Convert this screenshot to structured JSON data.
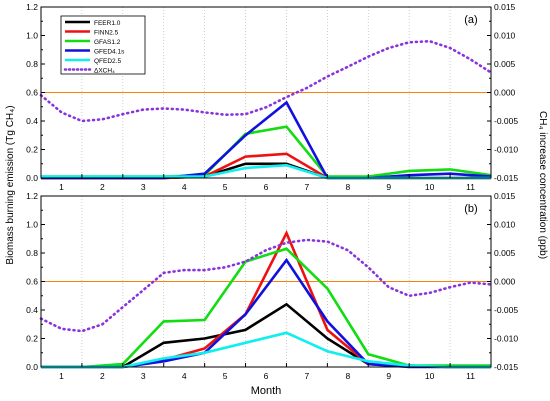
{
  "chart_data": {
    "type": "line",
    "xlabel": "Month",
    "ylabel_left": "Biomass burning emission (Tg CH₄)",
    "ylabel_right": "CH₄ increase concentration (ppb)",
    "x_ticks": [
      "1",
      "2",
      "3",
      "4",
      "5",
      "6",
      "7",
      "8",
      "9",
      "10",
      "11"
    ],
    "y_left_ticks": [
      "0.0",
      "0.2",
      "0.4",
      "0.6",
      "0.8",
      "1.0",
      "1.2"
    ],
    "y_right_ticks": [
      "-0.015",
      "-0.010",
      "-0.005",
      "0.000",
      "0.005",
      "0.010",
      "0.015"
    ],
    "y_left_range": [
      0,
      1.2
    ],
    "y_right_range": [
      -0.015,
      0.015
    ],
    "x_range": [
      0.5,
      11.5
    ],
    "colors": {
      "FEER1.0": "#000000",
      "FINN2.5": "#ee1111",
      "GFAS1.2": "#11dd11",
      "GFED4.1s": "#1111dd",
      "QFED2.5": "#11eeee",
      "dxch4": "#8833dd",
      "zero_line": "#ff7f0e"
    },
    "panels": [
      {
        "label": "(a)",
        "series": [
          {
            "name": "FEER1.0",
            "x": [
              0.5,
              1.5,
              2.5,
              3.5,
              4.5,
              5.5,
              6.5,
              7.5,
              8.5,
              9.5,
              10.5,
              11.5
            ],
            "y": [
              0,
              0,
              0,
              0,
              0.01,
              0.1,
              0.1,
              0,
              0,
              0,
              0,
              0
            ]
          },
          {
            "name": "FINN2.5",
            "x": [
              0.5,
              1.5,
              2.5,
              3.5,
              4.5,
              5.5,
              6.5,
              7.5,
              8.5,
              9.5,
              10.5,
              11.5
            ],
            "y": [
              0,
              0,
              0,
              0,
              0.01,
              0.15,
              0.17,
              0,
              0,
              0,
              0,
              0
            ]
          },
          {
            "name": "GFAS1.2",
            "x": [
              0.5,
              1.5,
              2.5,
              3.5,
              4.5,
              5.5,
              6.5,
              7.5,
              8.5,
              9.5,
              10.5,
              11.5
            ],
            "y": [
              0.01,
              0.01,
              0.01,
              0.01,
              0.02,
              0.31,
              0.36,
              0.01,
              0.01,
              0.05,
              0.06,
              0.02
            ]
          },
          {
            "name": "GFED4.1s",
            "x": [
              0.5,
              1.5,
              2.5,
              3.5,
              4.5,
              5.5,
              6.5,
              7.5,
              8.5,
              9.5,
              10.5,
              11.5
            ],
            "y": [
              0,
              0,
              0,
              0,
              0.03,
              0.3,
              0.53,
              0,
              0,
              0.02,
              0.03,
              0.01
            ]
          },
          {
            "name": "QFED2.5",
            "x": [
              0.5,
              1.5,
              2.5,
              3.5,
              4.5,
              5.5,
              6.5,
              7.5,
              8.5,
              9.5,
              10.5,
              11.5
            ],
            "y": [
              0.01,
              0.01,
              0.01,
              0.01,
              0.01,
              0.07,
              0.09,
              0,
              0,
              0,
              0,
              0
            ]
          }
        ],
        "dxch4": {
          "name": "ΔXCH₄",
          "x": [
            0.5,
            1,
            1.5,
            2,
            2.5,
            3,
            3.5,
            4,
            4.5,
            5,
            5.5,
            6,
            6.5,
            7,
            7.5,
            8,
            8.5,
            9,
            9.5,
            10,
            10.5,
            11,
            11.5
          ],
          "y": [
            -0.0005,
            -0.0035,
            -0.005,
            -0.0047,
            -0.0038,
            -0.003,
            -0.0028,
            -0.003,
            -0.0035,
            -0.0039,
            -0.0038,
            -0.0026,
            -0.0008,
            0.0008,
            0.0028,
            0.0045,
            0.0063,
            0.0078,
            0.0088,
            0.009,
            0.0078,
            0.0058,
            0.0035
          ]
        }
      },
      {
        "label": "(b)",
        "series": [
          {
            "name": "FEER1.0",
            "x": [
              0.5,
              1.5,
              2.5,
              3.5,
              4.5,
              5.5,
              6.5,
              7.5,
              8.5,
              9.5,
              10.5,
              11.5
            ],
            "y": [
              0,
              0,
              0,
              0.17,
              0.2,
              0.26,
              0.44,
              0.2,
              0.02,
              0.01,
              0,
              0
            ]
          },
          {
            "name": "FINN2.5",
            "x": [
              0.5,
              1.5,
              2.5,
              3.5,
              4.5,
              5.5,
              6.5,
              7.5,
              8.5,
              9.5,
              10.5,
              11.5
            ],
            "y": [
              0,
              0,
              0,
              0.05,
              0.13,
              0.37,
              0.94,
              0.26,
              0.02,
              0.01,
              0,
              0
            ]
          },
          {
            "name": "GFAS1.2",
            "x": [
              0.5,
              1.5,
              2.5,
              3.5,
              4.5,
              5.5,
              6.5,
              7.5,
              8.5,
              9.5,
              10.5,
              11.5
            ],
            "y": [
              0,
              0,
              0.02,
              0.32,
              0.33,
              0.74,
              0.83,
              0.55,
              0.09,
              0.01,
              0.01,
              0.01
            ]
          },
          {
            "name": "GFED4.1s",
            "x": [
              0.5,
              1.5,
              2.5,
              3.5,
              4.5,
              5.5,
              6.5,
              7.5,
              8.5,
              9.5,
              10.5,
              11.5
            ],
            "y": [
              0,
              0,
              0,
              0.04,
              0.1,
              0.37,
              0.75,
              0.32,
              0.02,
              0,
              0,
              0
            ]
          },
          {
            "name": "QFED2.5",
            "x": [
              0.5,
              1.5,
              2.5,
              3.5,
              4.5,
              5.5,
              6.5,
              7.5,
              8.5,
              9.5,
              10.5,
              11.5
            ],
            "y": [
              0,
              0,
              0,
              0.06,
              0.1,
              0.17,
              0.24,
              0.11,
              0.04,
              0.01,
              0,
              0
            ]
          }
        ],
        "dxch4": {
          "name": "ΔXCH₄",
          "x": [
            0.5,
            1,
            1.5,
            2,
            2.5,
            3,
            3.5,
            4,
            4.5,
            5,
            5.5,
            6,
            6.5,
            7,
            7.5,
            8,
            8.5,
            9,
            9.5,
            10,
            10.5,
            11,
            11.5
          ],
          "y": [
            -0.0065,
            -0.0083,
            -0.0087,
            -0.0075,
            -0.0045,
            -0.0015,
            0.0015,
            0.002,
            0.002,
            0.0025,
            0.0035,
            0.0055,
            0.0068,
            0.0073,
            0.007,
            0.0055,
            0.0025,
            -0.001,
            -0.0025,
            -0.002,
            -0.001,
            -0.0002,
            -0.0005
          ]
        }
      }
    ],
    "legend": [
      "FEER1.0",
      "FINN2.5",
      "GFAS1.2",
      "GFED4.1s",
      "QFED2.5",
      "ΔXCH₄"
    ],
    "legend_position": "top-left (panel a)"
  }
}
